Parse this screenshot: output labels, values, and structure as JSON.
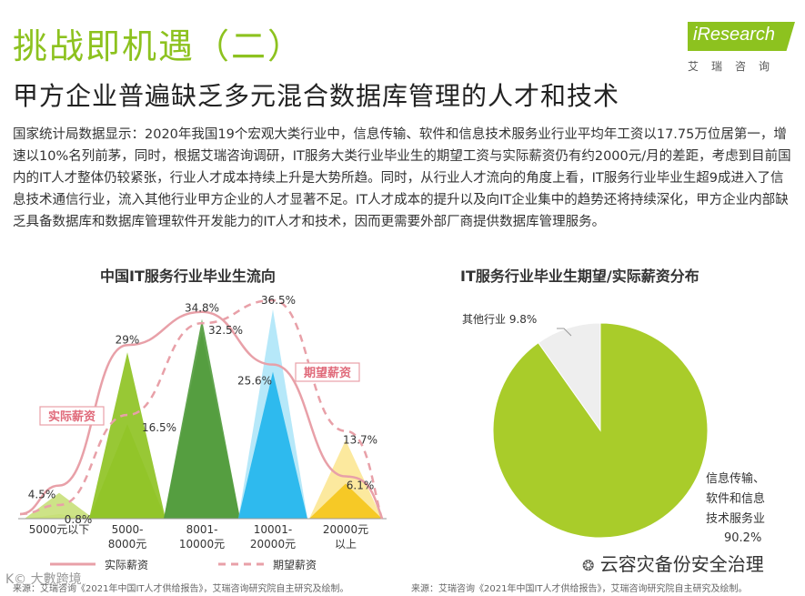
{
  "header": {
    "title": "挑战即机遇（二）",
    "subtitle": "甲方企业普遍缺乏多元混合数据库管理的人才和技术",
    "logo_text": "iResearch",
    "logo_sub": "艾瑞咨询",
    "brand_color": "#8dc21f"
  },
  "body_text": "国家统计局数据显示：2020年我国19个宏观大类行业中，信息传输、软件和信息技术服务业行业平均年工资以17.75万位居第一，增速以10%名列前茅，同时，根据艾瑞咨询调研，IT服务大类行业毕业生的期望工资与实际薪资仍有约2000元/月的差距，考虑到目前国内的IT人才整体仍较紧张，行业人才成本持续上升是大势所趋。同时，从行业人才流向的角度上看，IT服务行业毕业生超9成进入了信息技术通信行业，流入其他行业甲方企业的人才显著不足。IT人才成本的提升以及向IT企业集中的趋势还将持续深化，甲方企业内部缺乏具备数据库和数据库管理软件开发能力的IT人才和技术，因而更需要外部厂商提供数据库管理服务。",
  "left_chart": {
    "title": "中国IT服务行业毕业生流向",
    "source": "来源：艾瑞咨询《2021年中国IT人才供给报告》，艾瑞咨询研究院自主研究及绘制。"
  },
  "right_chart": {
    "title": "IT服务行业毕业生期望/实际薪资分布",
    "source": "来源：艾瑞咨询《2021年中国IT人才供给报告》，艾瑞咨询研究院自主研究及绘制。"
  },
  "chart_data": [
    {
      "type": "area",
      "categories": [
        "5000元以下",
        "5000-8000元",
        "8001-10000元",
        "10001-20000元",
        "20000元以上"
      ],
      "series": [
        {
          "name": "实际薪资",
          "values": [
            4.5,
            29,
            34.8,
            25.6,
            6.1
          ],
          "color": "#e8a0a8"
        },
        {
          "name": "期望薪资",
          "values": [
            0.8,
            16.5,
            32.5,
            36.5,
            13.7
          ],
          "color": "#e8a0a8"
        }
      ],
      "value_labels": [
        "4.5%",
        "0.8%",
        "29%",
        "16.5%",
        "34.8%",
        "32.5%",
        "36.5%",
        "25.6%",
        "13.7%",
        "6.1%"
      ],
      "legend": [
        "实际薪资",
        "期望薪资"
      ],
      "callouts": [
        "实际薪资",
        "期望薪资"
      ],
      "colors": [
        "#8dc21f",
        "#5b9e3a",
        "#35c0f0",
        "#f5c518"
      ]
    },
    {
      "type": "pie",
      "slices": [
        {
          "label": "信息传输、软件和信息技术服务业",
          "value": 90.2,
          "label_text": "90.2%",
          "color": "#a9cc2a"
        },
        {
          "label": "其他行业",
          "value": 9.8,
          "label_text": "9.8%",
          "color": "#eeeeee"
        }
      ],
      "label_lines": [
        "信息传输、",
        "软件和信息",
        "技术服务业"
      ]
    }
  ],
  "watermark": {
    "right": "云容灾备份安全治理",
    "left": "K© 大數跨境"
  }
}
